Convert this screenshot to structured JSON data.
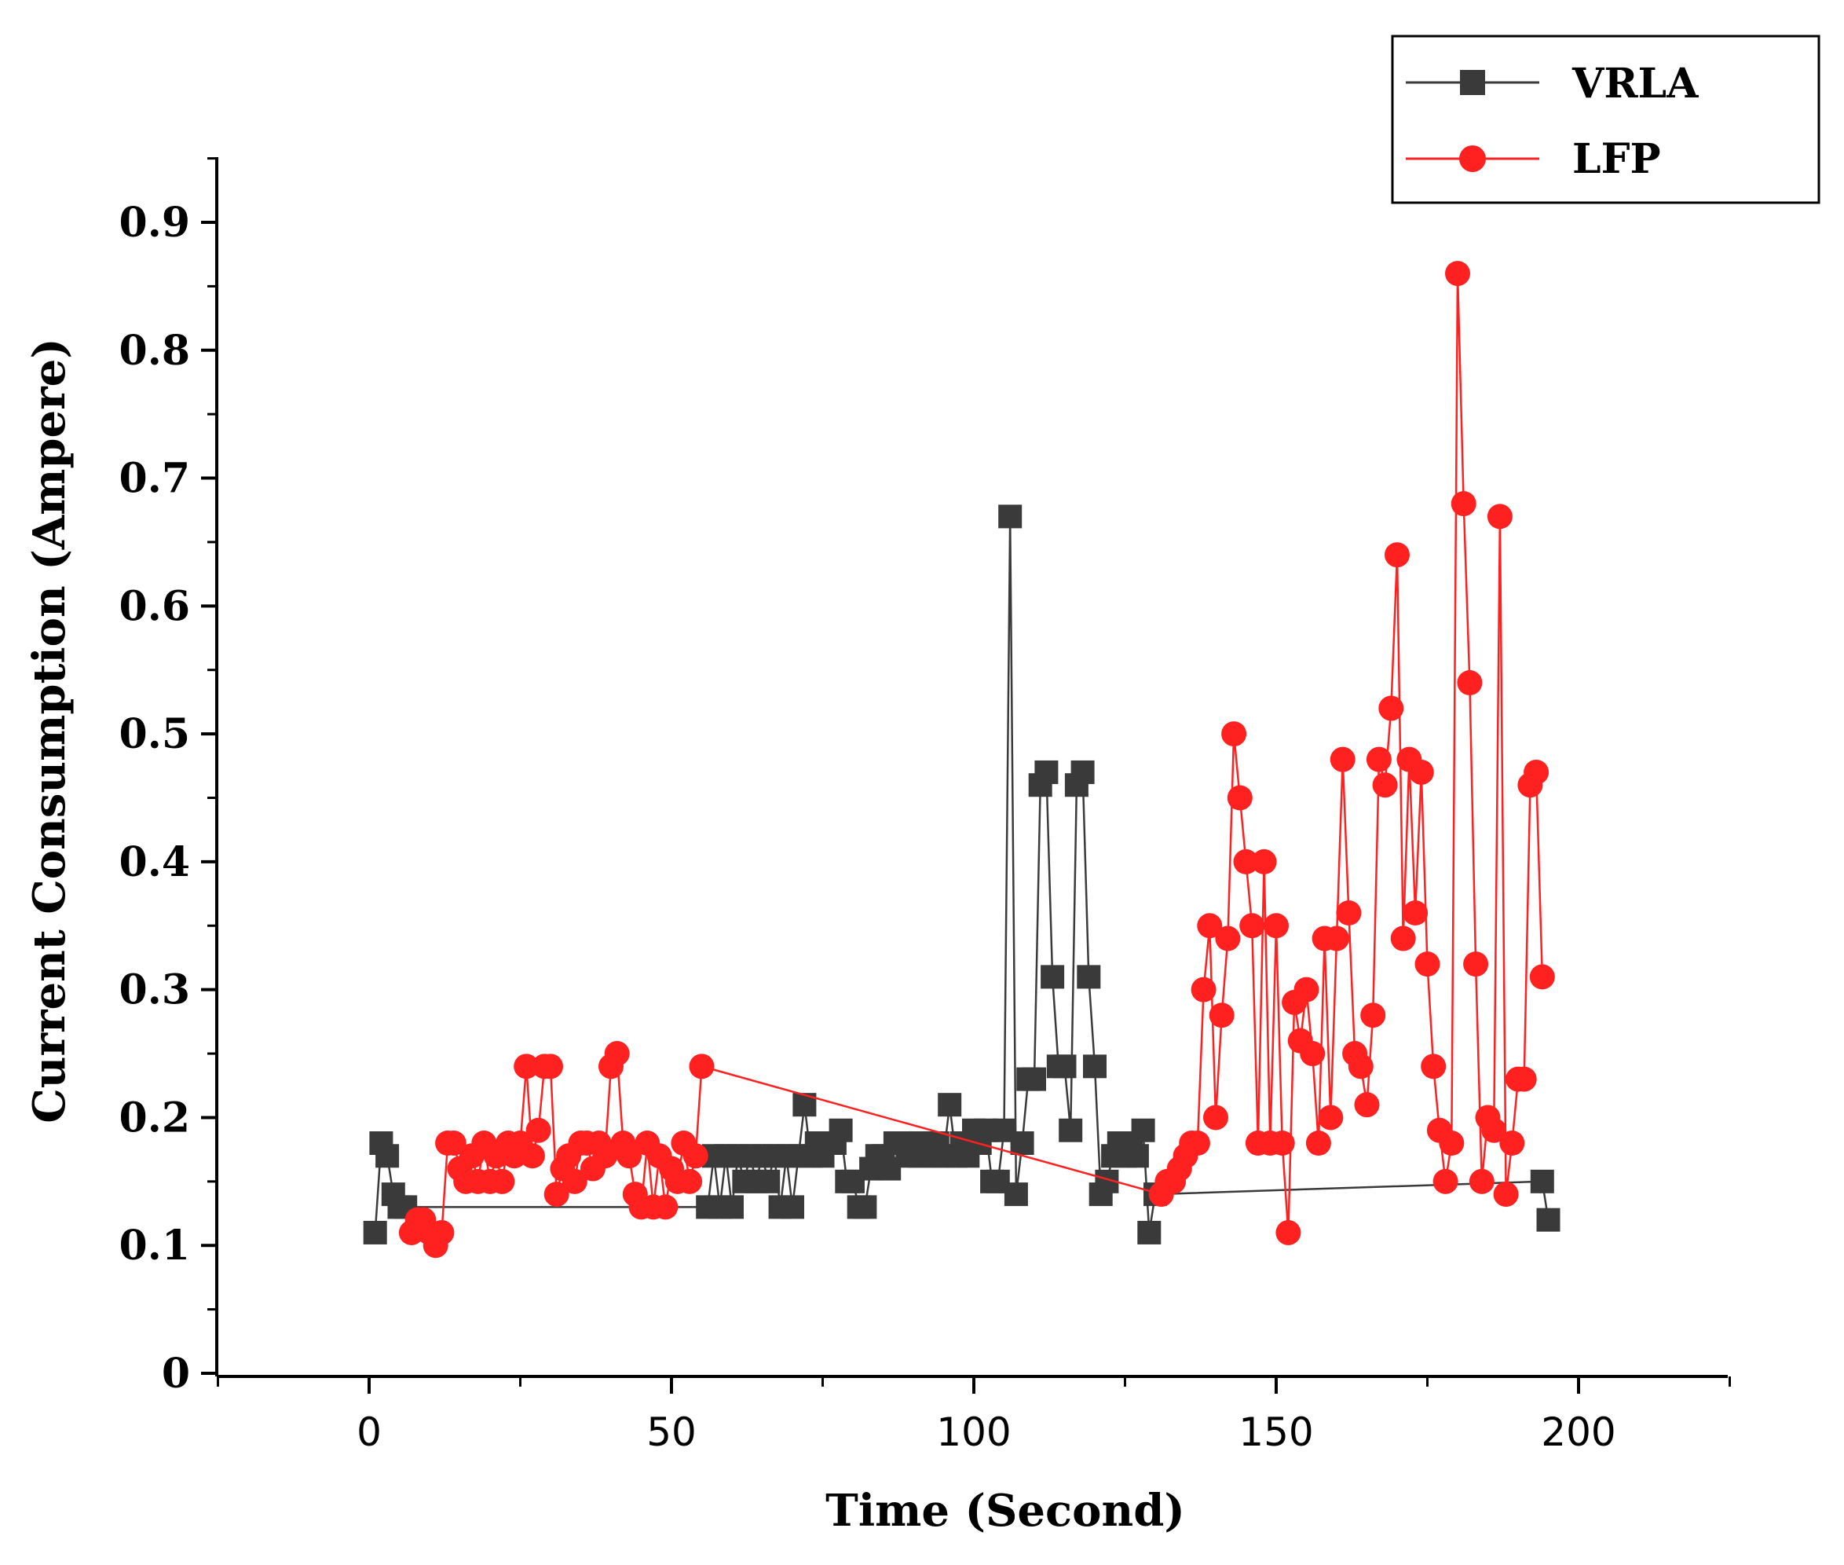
{
  "chart_data": {
    "type": "line",
    "xlabel": "Time (Second)",
    "ylabel": "Current Consumption (Ampere)",
    "xlim": [
      -25,
      225
    ],
    "ylim": [
      0,
      0.95
    ],
    "x_ticks": [
      0,
      50,
      100,
      150,
      200
    ],
    "y_ticks": [
      0,
      0.1,
      0.2,
      0.3,
      0.4,
      0.5,
      0.6,
      0.7,
      0.8,
      0.9
    ],
    "x_tick_labels": [
      "0",
      "50",
      "100",
      "150",
      "200"
    ],
    "y_tick_labels": [
      "0",
      "0.1",
      "0.2",
      "0.3",
      "0.4",
      "0.5",
      "0.6",
      "0.7",
      "0.8",
      "0.9"
    ],
    "legend_position": "top-right",
    "grid": false,
    "series": [
      {
        "name": "VRLA",
        "color": "#3a3a3a",
        "marker": "square",
        "x": [
          1,
          2,
          3,
          4,
          5,
          6,
          56,
          57,
          58,
          59,
          60,
          61,
          62,
          63,
          64,
          65,
          66,
          67,
          68,
          69,
          70,
          71,
          72,
          73,
          74,
          75,
          76,
          77,
          78,
          79,
          80,
          81,
          82,
          83,
          84,
          85,
          86,
          87,
          88,
          89,
          90,
          91,
          92,
          93,
          94,
          95,
          96,
          97,
          98,
          99,
          100,
          101,
          102,
          103,
          104,
          105,
          106,
          107,
          108,
          109,
          110,
          111,
          112,
          113,
          114,
          115,
          116,
          117,
          118,
          119,
          120,
          121,
          122,
          123,
          124,
          125,
          126,
          127,
          128,
          129,
          130,
          194,
          195
        ],
        "y": [
          0.11,
          0.18,
          0.17,
          0.14,
          0.13,
          0.13,
          0.13,
          0.17,
          0.13,
          0.17,
          0.13,
          0.17,
          0.15,
          0.17,
          0.15,
          0.17,
          0.15,
          0.17,
          0.13,
          0.17,
          0.13,
          0.17,
          0.21,
          0.17,
          0.18,
          0.17,
          0.18,
          0.18,
          0.19,
          0.15,
          0.15,
          0.13,
          0.13,
          0.16,
          0.17,
          0.17,
          0.16,
          0.18,
          0.18,
          0.17,
          0.18,
          0.17,
          0.18,
          0.17,
          0.18,
          0.17,
          0.21,
          0.17,
          0.18,
          0.17,
          0.19,
          0.18,
          0.19,
          0.15,
          0.15,
          0.19,
          0.67,
          0.14,
          0.18,
          0.23,
          0.23,
          0.46,
          0.47,
          0.31,
          0.24,
          0.24,
          0.19,
          0.46,
          0.47,
          0.31,
          0.24,
          0.14,
          0.15,
          0.17,
          0.18,
          0.17,
          0.18,
          0.17,
          0.19,
          0.11,
          0.14,
          0.15,
          0.12
        ]
      },
      {
        "name": "LFP",
        "color": "#ff2020",
        "marker": "circle",
        "x": [
          7,
          8,
          9,
          10,
          11,
          12,
          13,
          14,
          15,
          16,
          17,
          18,
          19,
          20,
          21,
          22,
          23,
          24,
          25,
          26,
          27,
          28,
          29,
          30,
          31,
          32,
          33,
          34,
          35,
          36,
          37,
          38,
          39,
          40,
          41,
          42,
          43,
          44,
          45,
          46,
          47,
          48,
          49,
          50,
          51,
          52,
          53,
          54,
          55,
          131,
          132,
          133,
          134,
          135,
          136,
          137,
          138,
          139,
          140,
          141,
          142,
          143,
          144,
          145,
          146,
          147,
          148,
          149,
          150,
          151,
          152,
          153,
          154,
          155,
          156,
          157,
          158,
          159,
          160,
          161,
          162,
          163,
          164,
          165,
          166,
          167,
          168,
          169,
          170,
          171,
          172,
          173,
          174,
          175,
          176,
          177,
          178,
          179,
          180,
          181,
          182,
          183,
          184,
          185,
          186,
          187,
          188,
          189,
          190,
          191,
          192,
          193,
          194
        ],
        "y": [
          0.11,
          0.12,
          0.12,
          0.11,
          0.1,
          0.11,
          0.18,
          0.18,
          0.16,
          0.15,
          0.17,
          0.15,
          0.18,
          0.15,
          0.17,
          0.15,
          0.18,
          0.17,
          0.18,
          0.24,
          0.17,
          0.19,
          0.24,
          0.24,
          0.14,
          0.16,
          0.17,
          0.15,
          0.18,
          0.18,
          0.16,
          0.18,
          0.17,
          0.24,
          0.25,
          0.18,
          0.17,
          0.14,
          0.13,
          0.18,
          0.13,
          0.17,
          0.13,
          0.16,
          0.15,
          0.18,
          0.15,
          0.17,
          0.24,
          0.14,
          0.15,
          0.15,
          0.16,
          0.17,
          0.18,
          0.18,
          0.3,
          0.35,
          0.2,
          0.28,
          0.34,
          0.5,
          0.45,
          0.4,
          0.35,
          0.18,
          0.4,
          0.18,
          0.35,
          0.18,
          0.11,
          0.29,
          0.26,
          0.3,
          0.25,
          0.18,
          0.34,
          0.2,
          0.34,
          0.48,
          0.36,
          0.25,
          0.24,
          0.21,
          0.28,
          0.48,
          0.46,
          0.52,
          0.64,
          0.34,
          0.48,
          0.36,
          0.47,
          0.32,
          0.24,
          0.19,
          0.15,
          0.18,
          0.86,
          0.68,
          0.54,
          0.32,
          0.15,
          0.2,
          0.19,
          0.67,
          0.14,
          0.18,
          0.23,
          0.23,
          0.46,
          0.47,
          0.31
        ]
      }
    ]
  }
}
